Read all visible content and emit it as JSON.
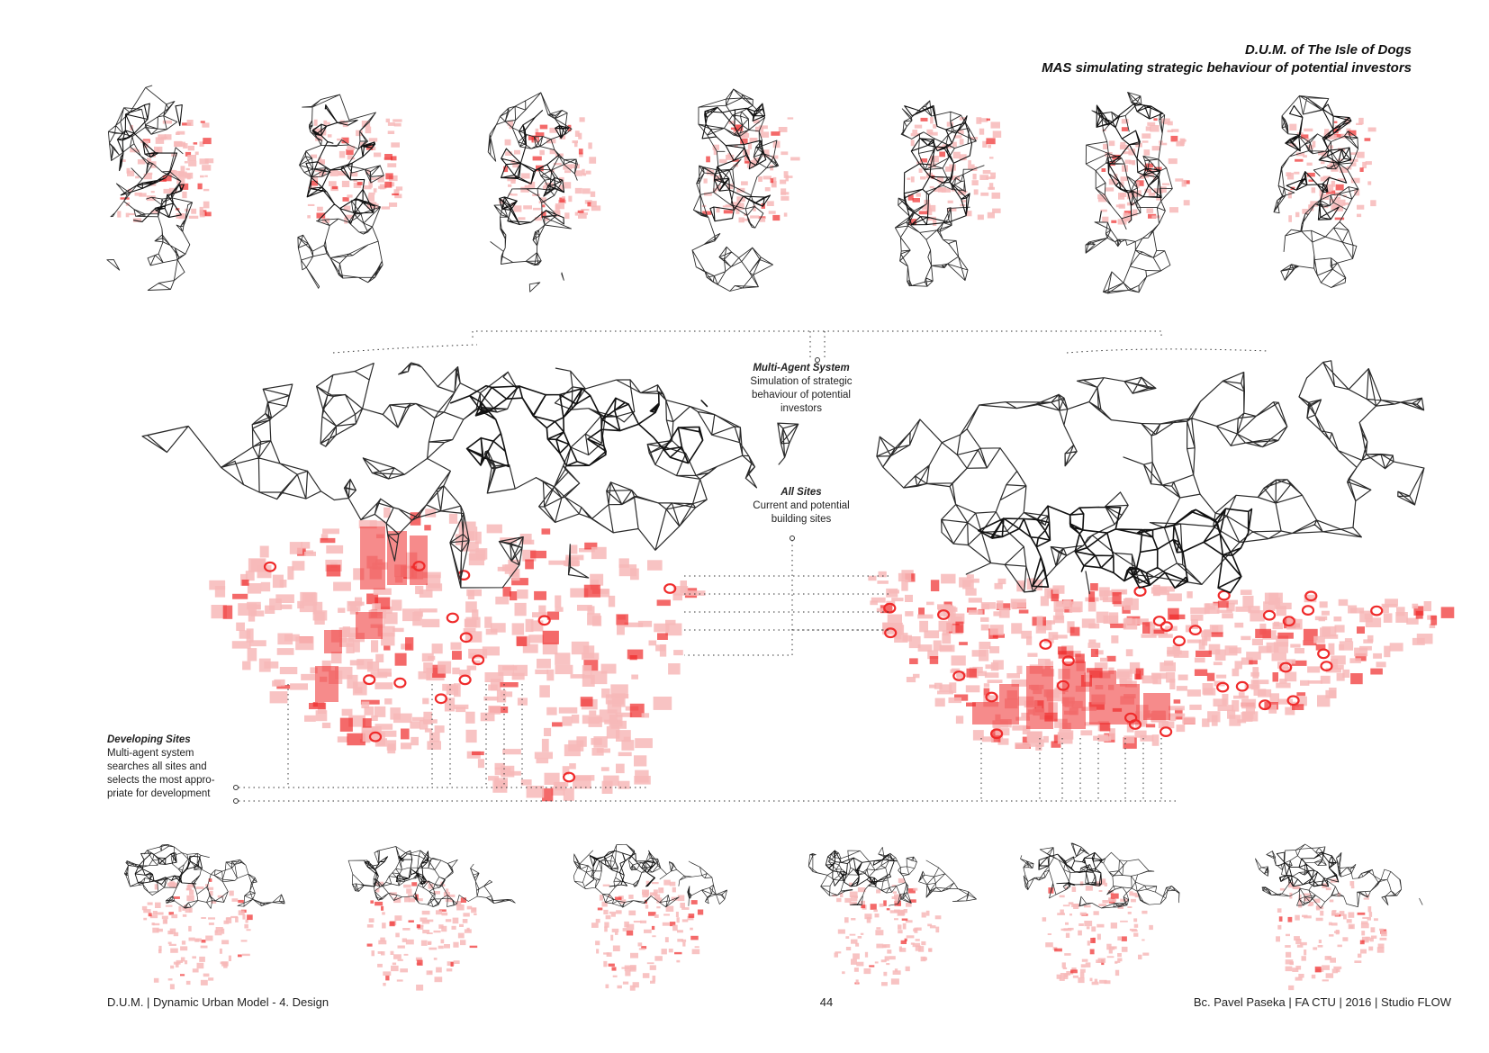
{
  "header": {
    "title": "D.U.M. of The Isle of Dogs",
    "subtitle": "MAS simulating strategic behaviour of potential  investors"
  },
  "callouts": {
    "mas": {
      "heading": "Multi-Agent System",
      "lines": [
        "Simulation of strategic",
        "behaviour of potential",
        "investors"
      ]
    },
    "sites": {
      "heading": "All Sites",
      "lines": [
        "Current and potential",
        "building sites"
      ]
    },
    "developing": {
      "heading": "Developing Sites",
      "lines": [
        "Multi-agent system",
        "searches all sites and",
        "selects the most appro-",
        "priate for development"
      ]
    }
  },
  "footer": {
    "left": "D.U.M. | Dynamic Urban Model - 4. Design",
    "page": "44",
    "right": "Bc. Pavel Paseka | FA CTU | 2016 | Studio FLOW"
  },
  "colors": {
    "network": "#2a2a2a",
    "sites": "#ef2b2b",
    "sites_light": "#f7b8b8",
    "guide_lines": "#333333"
  },
  "visual": {
    "top_plan_thumbnails": 7,
    "bottom_axonometric_thumbnails": 6,
    "large_models": 2
  }
}
